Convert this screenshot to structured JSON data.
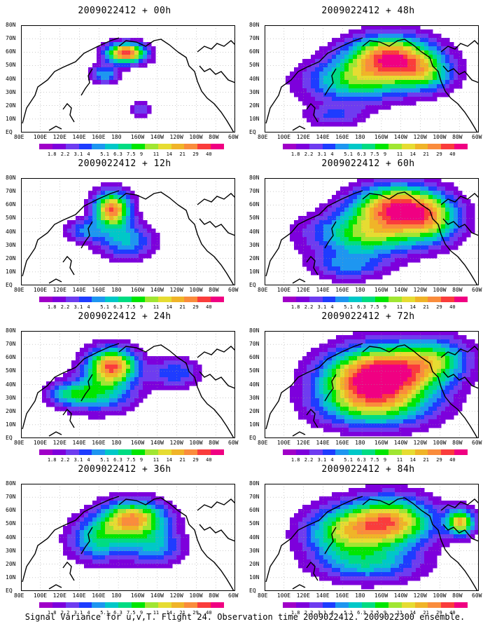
{
  "panels": [
    {
      "title": "2009022412 + 00h"
    },
    {
      "title": "2009022412 + 48h"
    },
    {
      "title": "2009022412 + 12h"
    },
    {
      "title": "2009022412 + 60h"
    },
    {
      "title": "2009022412 + 24h"
    },
    {
      "title": "2009022412 + 72h"
    },
    {
      "title": "2009022412 + 36h"
    },
    {
      "title": "2009022412 + 84h"
    }
  ],
  "lat_labels": [
    "80N",
    "70N",
    "60N",
    "50N",
    "40N",
    "30N",
    "20N",
    "10N",
    "EQ"
  ],
  "lon_labels": [
    "80E",
    "100E",
    "120E",
    "140E",
    "160E",
    "180",
    "160W",
    "140W",
    "120W",
    "100W",
    "80W",
    "60W"
  ],
  "colorbar": {
    "labels": [
      "1.8",
      "2.2",
      "3.1",
      "4",
      "5.1",
      "6.3",
      "7.5",
      "9",
      "11",
      "14",
      "21",
      "29",
      "40"
    ],
    "colors": [
      "#a000c8",
      "#7d00dc",
      "#6e3cf0",
      "#1e3cff",
      "#1e96f0",
      "#00c8c8",
      "#00dc82",
      "#00e600",
      "#a0e632",
      "#e6dc32",
      "#f0b428",
      "#fa8c3c",
      "#fa3c3c",
      "#f00082"
    ]
  },
  "caption": "Signal Variance for u,v,T. Flight 24. Observation time 2009022412. 2009022300 ensemble."
}
